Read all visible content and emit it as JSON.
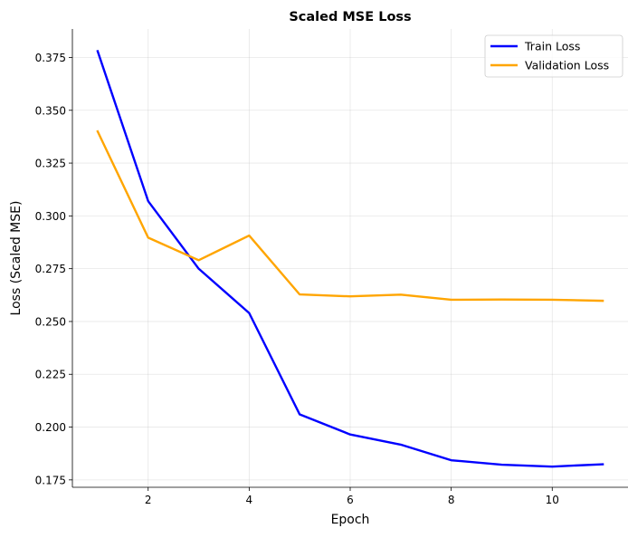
{
  "chart_data": {
    "type": "line",
    "title": "Scaled MSE Loss",
    "xlabel": "Epoch",
    "ylabel": "Loss (Scaled MSE)",
    "x": [
      1,
      2,
      3,
      4,
      5,
      6,
      7,
      8,
      9,
      10,
      11
    ],
    "xlim": [
      0.5,
      11.5
    ],
    "ylim": [
      0.1715,
      0.3885
    ],
    "xticks": [
      2,
      4,
      6,
      8,
      10
    ],
    "xtick_labels": [
      "2",
      "4",
      "6",
      "8",
      "10"
    ],
    "yticks": [
      0.175,
      0.2,
      0.225,
      0.25,
      0.275,
      0.3,
      0.325,
      0.35,
      0.375
    ],
    "ytick_labels": [
      "0.175",
      "0.200",
      "0.225",
      "0.250",
      "0.275",
      "0.300",
      "0.325",
      "0.350",
      "0.375"
    ],
    "grid": true,
    "legend_position": "top-right",
    "series": [
      {
        "name": "Train Loss",
        "color": "#0000ff",
        "values": [
          0.378,
          0.307,
          0.275,
          0.254,
          0.206,
          0.1965,
          0.1917,
          0.1843,
          0.1822,
          0.1813,
          0.1824
        ]
      },
      {
        "name": "Validation Loss",
        "color": "#ffa500",
        "values": [
          0.34,
          0.2897,
          0.279,
          0.2907,
          0.2628,
          0.2619,
          0.2627,
          0.2603,
          0.2604,
          0.2603,
          0.2598
        ]
      }
    ]
  }
}
